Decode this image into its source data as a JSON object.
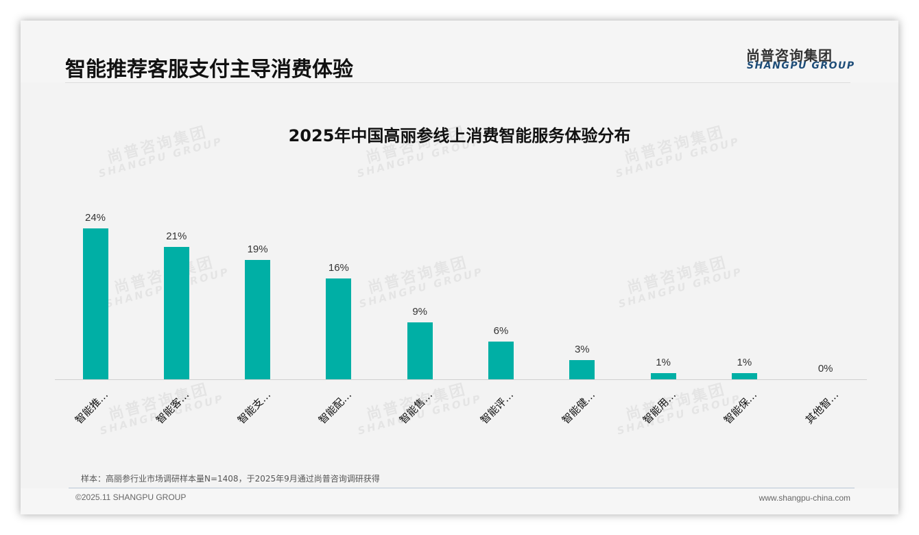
{
  "header": {
    "title": "智能推荐客服支付主导消费体验",
    "logo_cn": "尚普咨询集团",
    "logo_en": "SHANGPU GROUP"
  },
  "watermark": {
    "cn": "尚普咨询集团",
    "en": "SHANGPU GROUP"
  },
  "colors": {
    "bar": "#00afa5",
    "logo_en": "#1f4e79",
    "background": "#f3f3f3"
  },
  "chart_data": {
    "type": "bar",
    "title": "2025年中国高丽参线上消费智能服务体验分布",
    "categories": [
      "智能推…",
      "智能客…",
      "智能支…",
      "智能配…",
      "智能售…",
      "智能评…",
      "智能健…",
      "智能用…",
      "智能保…",
      "其他智…"
    ],
    "values": [
      24,
      21,
      19,
      16,
      9,
      6,
      3,
      1,
      1,
      0
    ],
    "value_labels": [
      "24%",
      "21%",
      "19%",
      "16%",
      "9%",
      "6%",
      "3%",
      "1%",
      "1%",
      "0%"
    ],
    "unit": "%",
    "xlabel": "",
    "ylabel": "",
    "ylim": [
      0,
      24
    ],
    "grid": false,
    "legend": "none",
    "data_labels": true
  },
  "footer": {
    "note": "样本：高丽参行业市场调研样本量N=1408，于2025年9月通过尚普咨询调研获得",
    "copyright": "©2025.11 SHANGPU GROUP",
    "website": "www.shangpu-china.com"
  }
}
